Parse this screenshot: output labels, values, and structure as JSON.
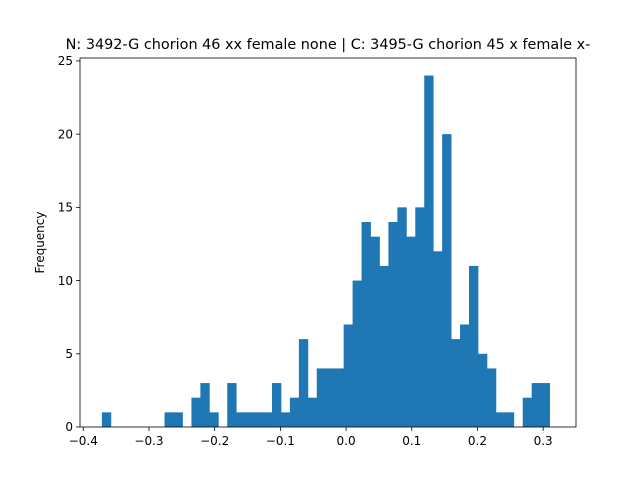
{
  "chart_data": {
    "type": "bar",
    "subtype": "histogram",
    "title": "N: 3492-G chorion 46 xx female none | C: 3495-G chorion 45 x female x-",
    "xlabel": "",
    "ylabel": "Frequency",
    "xlim": [
      -0.405,
      0.35
    ],
    "ylim": [
      0,
      25.2
    ],
    "bin_width": 0.01363,
    "bin_start": -0.3717,
    "color": "#1f77b4",
    "x_ticks": [
      -0.4,
      -0.3,
      -0.2,
      -0.1,
      0.0,
      0.1,
      0.2,
      0.3
    ],
    "x_tick_labels": [
      "−0.4",
      "−0.3",
      "−0.2",
      "−0.1",
      "0.0",
      "0.1",
      "0.2",
      "0.3"
    ],
    "y_ticks": [
      0,
      5,
      10,
      15,
      20,
      25
    ],
    "y_tick_labels": [
      "0",
      "5",
      "10",
      "15",
      "20",
      "25"
    ],
    "values": [
      1,
      0,
      0,
      0,
      0,
      0,
      0,
      1,
      1,
      0,
      2,
      3,
      1,
      0,
      3,
      1,
      1,
      1,
      1,
      3,
      1,
      2,
      6,
      2,
      4,
      4,
      4,
      7,
      10,
      14,
      13,
      11,
      14,
      15,
      13,
      15,
      24,
      12,
      20,
      6,
      7,
      11,
      5,
      4,
      1,
      1,
      0,
      2,
      3,
      3
    ]
  }
}
